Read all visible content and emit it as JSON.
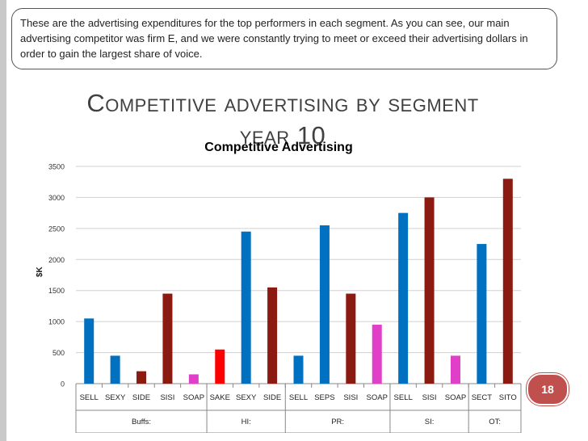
{
  "note": "These are the advertising expenditures for the top performers in each segment.  As you can see, our main advertising competitor was firm E, and we were constantly trying to meet or exceed their advertising dollars in order to gain the largest share of voice.",
  "slide_title_line1": "Competitive advertising by segment",
  "slide_title_line2": "year 10",
  "page_number": "18",
  "chart_data": {
    "type": "bar",
    "title": "Competitive Advertising",
    "ylabel": "$K",
    "xlabel": "",
    "ylim": [
      0,
      3500
    ],
    "yticks": [
      0,
      500,
      1000,
      1500,
      2000,
      2500,
      3000,
      3500
    ],
    "grid": true,
    "groups": [
      {
        "name": "Buffs:",
        "count": 5
      },
      {
        "name": "HI:",
        "count": 3
      },
      {
        "name": "PR:",
        "count": 4
      },
      {
        "name": "SI:",
        "count": 3
      },
      {
        "name": "OT:",
        "count": 2
      }
    ],
    "categories": [
      "SELL",
      "SEXY",
      "SIDE",
      "SISI",
      "SOAP",
      "SAKE",
      "SEXY",
      "SIDE",
      "SELL",
      "SEPS",
      "SISI",
      "SOAP",
      "SELL",
      "SISI",
      "SOAP",
      "SECT",
      "SITO"
    ],
    "values": [
      1050,
      450,
      200,
      1450,
      150,
      550,
      2450,
      1550,
      450,
      2550,
      1450,
      950,
      2750,
      3000,
      450,
      2250,
      3300
    ],
    "colors": [
      "#0070c0",
      "#0070c0",
      "#8b1a10",
      "#8b1a10",
      "#e040c8",
      "#ff0000",
      "#0070c0",
      "#8b1a10",
      "#0070c0",
      "#0070c0",
      "#8b1a10",
      "#e040c8",
      "#0070c0",
      "#8b1a10",
      "#e040c8",
      "#0070c0",
      "#8b1a10"
    ]
  }
}
